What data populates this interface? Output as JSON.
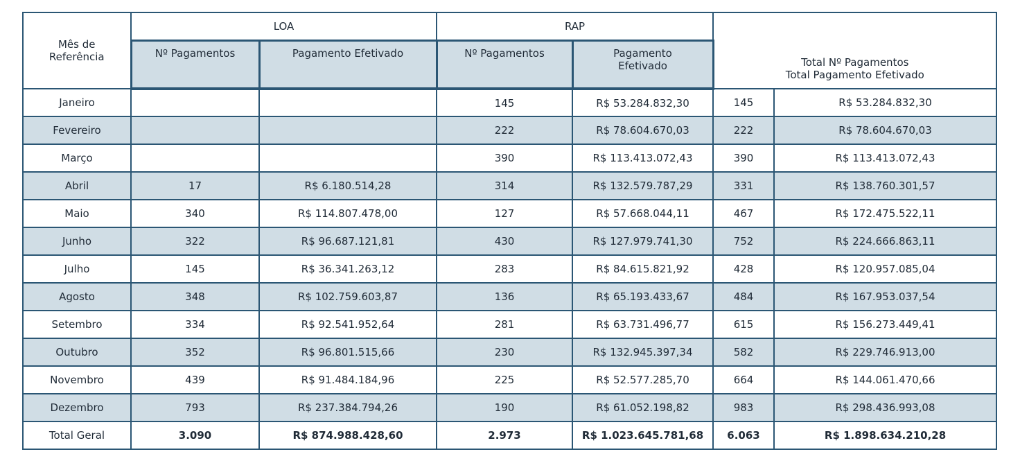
{
  "headers": {
    "month": [
      "Mês de",
      "Referência"
    ],
    "loa": "LOA",
    "rap": "RAP",
    "loa_count": "Nº Pagamentos",
    "loa_paid": "Pagamento Efetivado",
    "rap_count": "Nº Pagamentos",
    "rap_paid": [
      "Pagamento",
      "Efetivado"
    ],
    "total": [
      "Total Nº Pagamentos",
      "Total Pagamento Efetivado"
    ]
  },
  "rows": [
    {
      "month": "Janeiro",
      "loa_count": "",
      "loa_paid": "",
      "rap_count": "145",
      "rap_paid": "R$ 53.284.832,30",
      "total_count": "145",
      "total_paid": "R$ 53.284.832,30"
    },
    {
      "month": "Fevereiro",
      "loa_count": "",
      "loa_paid": "",
      "rap_count": "222",
      "rap_paid": "R$ 78.604.670,03",
      "total_count": "222",
      "total_paid": "R$ 78.604.670,03"
    },
    {
      "month": "Março",
      "loa_count": "",
      "loa_paid": "",
      "rap_count": "390",
      "rap_paid": "R$ 113.413.072,43",
      "total_count": "390",
      "total_paid": "R$ 113.413.072,43"
    },
    {
      "month": "Abril",
      "loa_count": "17",
      "loa_paid": "R$ 6.180.514,28",
      "rap_count": "314",
      "rap_paid": "R$ 132.579.787,29",
      "total_count": "331",
      "total_paid": "R$ 138.760.301,57"
    },
    {
      "month": "Maio",
      "loa_count": "340",
      "loa_paid": "R$ 114.807.478,00",
      "rap_count": "127",
      "rap_paid": "R$ 57.668.044,11",
      "total_count": "467",
      "total_paid": "R$ 172.475.522,11"
    },
    {
      "month": "Junho",
      "loa_count": "322",
      "loa_paid": "R$ 96.687.121,81",
      "rap_count": "430",
      "rap_paid": "R$ 127.979.741,30",
      "total_count": "752",
      "total_paid": "R$ 224.666.863,11"
    },
    {
      "month": "Julho",
      "loa_count": "145",
      "loa_paid": "R$ 36.341.263,12",
      "rap_count": "283",
      "rap_paid": "R$ 84.615.821,92",
      "total_count": "428",
      "total_paid": "R$ 120.957.085,04"
    },
    {
      "month": "Agosto",
      "loa_count": "348",
      "loa_paid": "R$ 102.759.603,87",
      "rap_count": "136",
      "rap_paid": "R$ 65.193.433,67",
      "total_count": "484",
      "total_paid": "R$ 167.953.037,54"
    },
    {
      "month": "Setembro",
      "loa_count": "334",
      "loa_paid": "R$ 92.541.952,64",
      "rap_count": "281",
      "rap_paid": "R$ 63.731.496,77",
      "total_count": "615",
      "total_paid": "R$ 156.273.449,41"
    },
    {
      "month": "Outubro",
      "loa_count": "352",
      "loa_paid": "R$ 96.801.515,66",
      "rap_count": "230",
      "rap_paid": "R$ 132.945.397,34",
      "total_count": "582",
      "total_paid": "R$ 229.746.913,00"
    },
    {
      "month": "Novembro",
      "loa_count": "439",
      "loa_paid": "R$ 91.484.184,96",
      "rap_count": "225",
      "rap_paid": "R$ 52.577.285,70",
      "total_count": "664",
      "total_paid": "R$ 144.061.470,66"
    },
    {
      "month": "Dezembro",
      "loa_count": "793",
      "loa_paid": "R$ 237.384.794,26",
      "rap_count": "190",
      "rap_paid": "R$ 61.052.198,82",
      "total_count": "983",
      "total_paid": "R$ 298.436.993,08"
    }
  ],
  "total_row": {
    "label": "Total Geral",
    "loa_count": "3.090",
    "loa_paid": "R$ 874.988.428,60",
    "rap_count": "2.973",
    "rap_paid": "R$ 1.023.645.781,68",
    "total_count": "6.063",
    "total_paid": "R$ 1.898.634.210,28"
  },
  "colors": {
    "border": "#2b5674",
    "shade": "#d0dde5",
    "text": "#1f2a36"
  }
}
